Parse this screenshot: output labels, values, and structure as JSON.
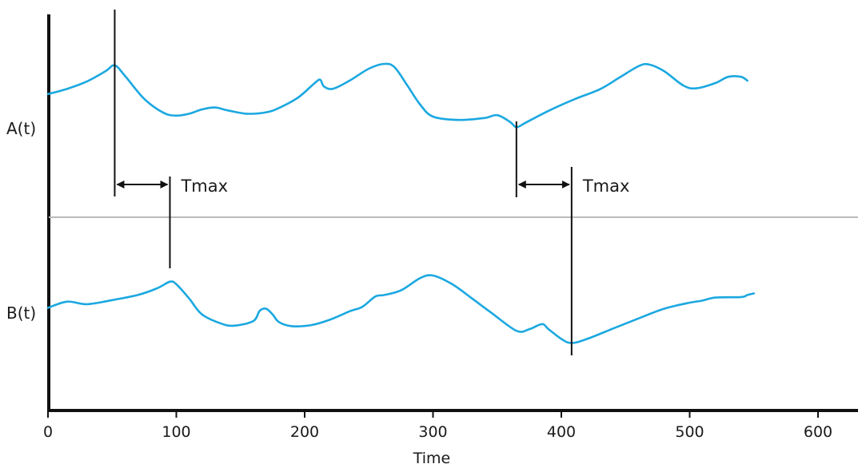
{
  "chart_data": {
    "type": "line",
    "title": "",
    "xlabel": "Time",
    "ylabel": "",
    "xlim": [
      0,
      630
    ],
    "x_ticks": [
      0,
      100,
      200,
      300,
      400,
      500,
      600
    ],
    "x_tick_labels": [
      "0",
      "100",
      "200",
      "300",
      "400",
      "500",
      "600"
    ],
    "grid": false,
    "line_color": "#1ba8e0",
    "axis_color": "#111111",
    "divider_color": "#bbbbbb",
    "series": [
      {
        "name": "A(t)",
        "label": "A(t)",
        "x": [
          0,
          15,
          30,
          45,
          52,
          60,
          75,
          90,
          100,
          110,
          120,
          130,
          140,
          155,
          170,
          180,
          195,
          207,
          212,
          215,
          222,
          235,
          250,
          262,
          270,
          280,
          290,
          300,
          320,
          340,
          350,
          360,
          365,
          372,
          390,
          410,
          430,
          445,
          460,
          468,
          480,
          495,
          505,
          520,
          530,
          540,
          545
        ],
        "y": [
          0.38,
          0.27,
          0.12,
          -0.1,
          -0.22,
          0.0,
          0.48,
          0.77,
          0.83,
          0.79,
          0.7,
          0.66,
          0.72,
          0.79,
          0.76,
          0.67,
          0.45,
          0.17,
          0.08,
          0.22,
          0.27,
          0.1,
          -0.15,
          -0.25,
          -0.18,
          0.2,
          0.6,
          0.85,
          0.92,
          0.88,
          0.82,
          0.96,
          1.07,
          0.98,
          0.73,
          0.49,
          0.28,
          0.04,
          -0.2,
          -0.24,
          -0.1,
          0.2,
          0.26,
          0.15,
          0.02,
          0.02,
          0.1
        ],
        "peak_x": 52,
        "trough_x": 365
      },
      {
        "name": "B(t)",
        "label": "B(t)",
        "x": [
          0,
          15,
          30,
          50,
          70,
          85,
          95,
          100,
          110,
          120,
          135,
          145,
          160,
          165,
          170,
          175,
          180,
          190,
          205,
          220,
          235,
          245,
          255,
          262,
          275,
          290,
          300,
          315,
          330,
          345,
          365,
          375,
          385,
          390,
          400,
          408,
          420,
          440,
          460,
          480,
          500,
          510,
          520,
          540,
          545,
          550
        ],
        "y": [
          0.24,
          0.12,
          0.17,
          0.09,
          -0.01,
          -0.14,
          -0.27,
          -0.22,
          0.06,
          0.37,
          0.55,
          0.59,
          0.5,
          0.3,
          0.26,
          0.37,
          0.52,
          0.6,
          0.58,
          0.47,
          0.31,
          0.22,
          0.02,
          -0.01,
          -0.1,
          -0.34,
          -0.39,
          -0.22,
          0.05,
          0.33,
          0.69,
          0.66,
          0.56,
          0.66,
          0.85,
          0.93,
          0.85,
          0.65,
          0.45,
          0.26,
          0.14,
          0.1,
          0.04,
          0.03,
          -0.01,
          -0.04
        ],
        "peak_x": 95,
        "trough_x": 408
      }
    ],
    "annotations": [
      {
        "label": "Tmax",
        "x_from": 52,
        "x_to": 95
      },
      {
        "label": "Tmax",
        "x_from": 365,
        "x_to": 408
      }
    ]
  }
}
